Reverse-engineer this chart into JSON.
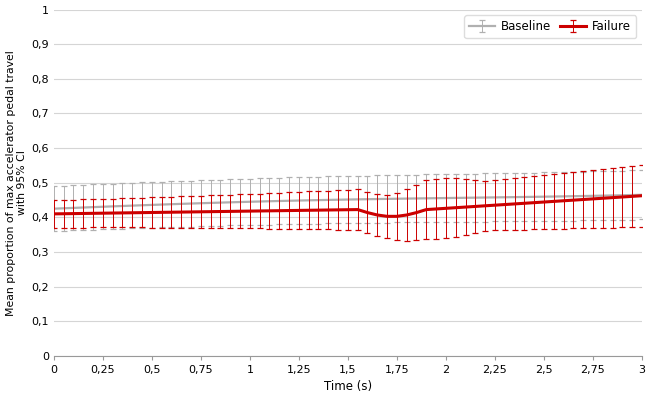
{
  "title": "",
  "xlabel": "Time (s)",
  "ylabel": "Mean proportion of max accelerator pedal travel\nwith 95% CI",
  "xlim": [
    0,
    3
  ],
  "ylim": [
    0,
    1
  ],
  "xticks": [
    0,
    0.25,
    0.5,
    0.75,
    1,
    1.25,
    1.5,
    1.75,
    2,
    2.25,
    2.5,
    2.75,
    3
  ],
  "xtick_labels": [
    "0",
    "0,25",
    "0,5",
    "0,75",
    "1",
    "1,25",
    "1,5",
    "1,75",
    "2",
    "2,25",
    "2,5",
    "2,75",
    "3"
  ],
  "yticks": [
    0,
    0.1,
    0.2,
    0.3,
    0.4,
    0.5,
    0.6,
    0.7,
    0.8,
    0.9,
    1
  ],
  "ytick_labels": [
    "0",
    "0,1",
    "0,2",
    "0,3",
    "0,4",
    "0,5",
    "0,6",
    "0,7",
    "0,8",
    "0,9",
    "1"
  ],
  "baseline_color": "#b0b0b0",
  "failure_color": "#cc0000",
  "legend_baseline": "Baseline",
  "legend_failure": "Failure",
  "grid_color": "#d5d5d5",
  "background_color": "#ffffff",
  "n_points": 61,
  "eb_n_points": 61
}
